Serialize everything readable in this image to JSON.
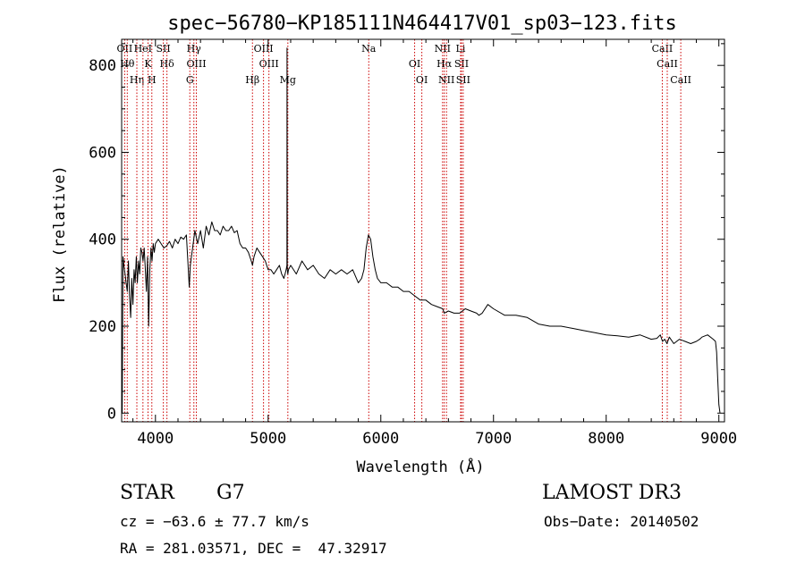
{
  "chart_data": {
    "type": "line",
    "title": "spec−56780−KP185111N464417V01_sp03−123.fits",
    "xlabel": "Wavelength (Å)",
    "ylabel": "Flux (relative)",
    "xlim": [
      3700,
      9050
    ],
    "ylim": [
      -20,
      860
    ],
    "xticks": [
      4000,
      5000,
      6000,
      7000,
      8000,
      9000
    ],
    "yticks": [
      0,
      200,
      400,
      600,
      800
    ],
    "xtick_labels": [
      "4000",
      "5000",
      "6000",
      "7000",
      "8000",
      "9000"
    ],
    "ytick_labels": [
      "0",
      "200",
      "400",
      "600",
      "800"
    ],
    "grid": false,
    "series": [
      {
        "name": "flux",
        "x": [
          3700,
          3705,
          3712,
          3720,
          3730,
          3740,
          3750,
          3760,
          3770,
          3780,
          3790,
          3800,
          3810,
          3820,
          3830,
          3840,
          3850,
          3860,
          3870,
          3880,
          3890,
          3900,
          3910,
          3920,
          3930,
          3940,
          3950,
          3960,
          3970,
          3980,
          3990,
          4000,
          4025,
          4050,
          4075,
          4100,
          4125,
          4150,
          4175,
          4200,
          4225,
          4250,
          4275,
          4300,
          4310,
          4325,
          4350,
          4375,
          4400,
          4425,
          4450,
          4475,
          4500,
          4525,
          4550,
          4575,
          4600,
          4625,
          4650,
          4675,
          4700,
          4725,
          4750,
          4775,
          4800,
          4825,
          4850,
          4861,
          4875,
          4900,
          4925,
          4950,
          4975,
          5000,
          5025,
          5050,
          5075,
          5100,
          5120,
          5140,
          5150,
          5160,
          5167,
          5168,
          5170,
          5175,
          5180,
          5200,
          5250,
          5300,
          5350,
          5400,
          5450,
          5500,
          5550,
          5600,
          5650,
          5700,
          5750,
          5800,
          5830,
          5850,
          5870,
          5890,
          5910,
          5930,
          5950,
          5970,
          6000,
          6050,
          6100,
          6150,
          6200,
          6250,
          6300,
          6350,
          6400,
          6450,
          6500,
          6550,
          6563,
          6600,
          6650,
          6700,
          6750,
          6800,
          6850,
          6870,
          6900,
          6950,
          7000,
          7100,
          7200,
          7300,
          7400,
          7500,
          7600,
          7700,
          7800,
          7900,
          8000,
          8100,
          8200,
          8300,
          8400,
          8450,
          8480,
          8500,
          8520,
          8540,
          8560,
          8600,
          8650,
          8700,
          8750,
          8800,
          8830,
          8850,
          8900,
          8950,
          8970,
          8980,
          8990,
          9000,
          9010
        ],
        "y": [
          30,
          0,
          360,
          340,
          320,
          300,
          280,
          350,
          270,
          220,
          310,
          250,
          330,
          300,
          360,
          300,
          350,
          320,
          380,
          370,
          350,
          380,
          330,
          280,
          360,
          200,
          330,
          380,
          350,
          390,
          370,
          390,
          400,
          390,
          380,
          385,
          395,
          380,
          400,
          390,
          405,
          400,
          410,
          290,
          340,
          370,
          420,
          390,
          420,
          380,
          430,
          410,
          440,
          420,
          420,
          410,
          430,
          420,
          420,
          430,
          415,
          420,
          390,
          380,
          380,
          370,
          350,
          340,
          360,
          380,
          370,
          360,
          350,
          330,
          330,
          320,
          330,
          340,
          320,
          310,
          320,
          330,
          340,
          840,
          330,
          320,
          330,
          340,
          320,
          350,
          330,
          340,
          320,
          310,
          330,
          320,
          330,
          320,
          330,
          300,
          310,
          330,
          380,
          410,
          400,
          360,
          330,
          310,
          300,
          300,
          290,
          290,
          280,
          280,
          270,
          260,
          260,
          250,
          245,
          240,
          230,
          235,
          230,
          230,
          240,
          235,
          230,
          225,
          230,
          250,
          240,
          225,
          225,
          220,
          205,
          200,
          200,
          195,
          190,
          185,
          180,
          178,
          175,
          180,
          170,
          172,
          180,
          165,
          170,
          160,
          175,
          160,
          170,
          165,
          160,
          165,
          170,
          175,
          180,
          170,
          165,
          140,
          80,
          20,
          0
        ]
      }
    ],
    "line_markers": [
      {
        "name": "OΙΙ",
        "x": 3727
      },
      {
        "name": "Hθ",
        "x": 3750
      },
      {
        "name": "Hη",
        "x": 3835
      },
      {
        "name": "HeΙ",
        "x": 3889
      },
      {
        "name": "K",
        "x": 3934
      },
      {
        "name": "H",
        "x": 3968
      },
      {
        "name": "SΙΙ",
        "x": 4070
      },
      {
        "name": "Hδ",
        "x": 4102
      },
      {
        "name": "G",
        "x": 4305
      },
      {
        "name": "Hγ",
        "x": 4341
      },
      {
        "name": "OΙΙΙ",
        "x": 4363
      },
      {
        "name": "Hβ",
        "x": 4861
      },
      {
        "name": "OΙΙΙ",
        "x": 4959
      },
      {
        "name": "OΙΙΙ",
        "x": 5007
      },
      {
        "name": "Mg",
        "x": 5175
      },
      {
        "name": "Na",
        "x": 5893
      },
      {
        "name": "OΙ",
        "x": 6300
      },
      {
        "name": "OΙ",
        "x": 6364
      },
      {
        "name": "NΙΙ",
        "x": 6548
      },
      {
        "name": "Hα",
        "x": 6563
      },
      {
        "name": "NΙΙ",
        "x": 6583
      },
      {
        "name": "Li",
        "x": 6708
      },
      {
        "name": "SΙΙ",
        "x": 6716
      },
      {
        "name": "SΙΙ",
        "x": 6731
      },
      {
        "name": "CaΙΙ",
        "x": 8498
      },
      {
        "name": "CaΙΙ",
        "x": 8542
      },
      {
        "name": "CaΙΙ",
        "x": 8662
      }
    ]
  },
  "info": {
    "class": "STAR",
    "subclass": "G7",
    "survey": "LAMOST DR3",
    "cz": "cz = −63.6 ± 77.7 km/s",
    "obs_date": "Obs−Date: 20140502",
    "coords": "RA = 281.03571, DEC =  47.32917"
  },
  "colors": {
    "line": "#000000",
    "marker": "#cc0000",
    "axis": "#000000"
  }
}
